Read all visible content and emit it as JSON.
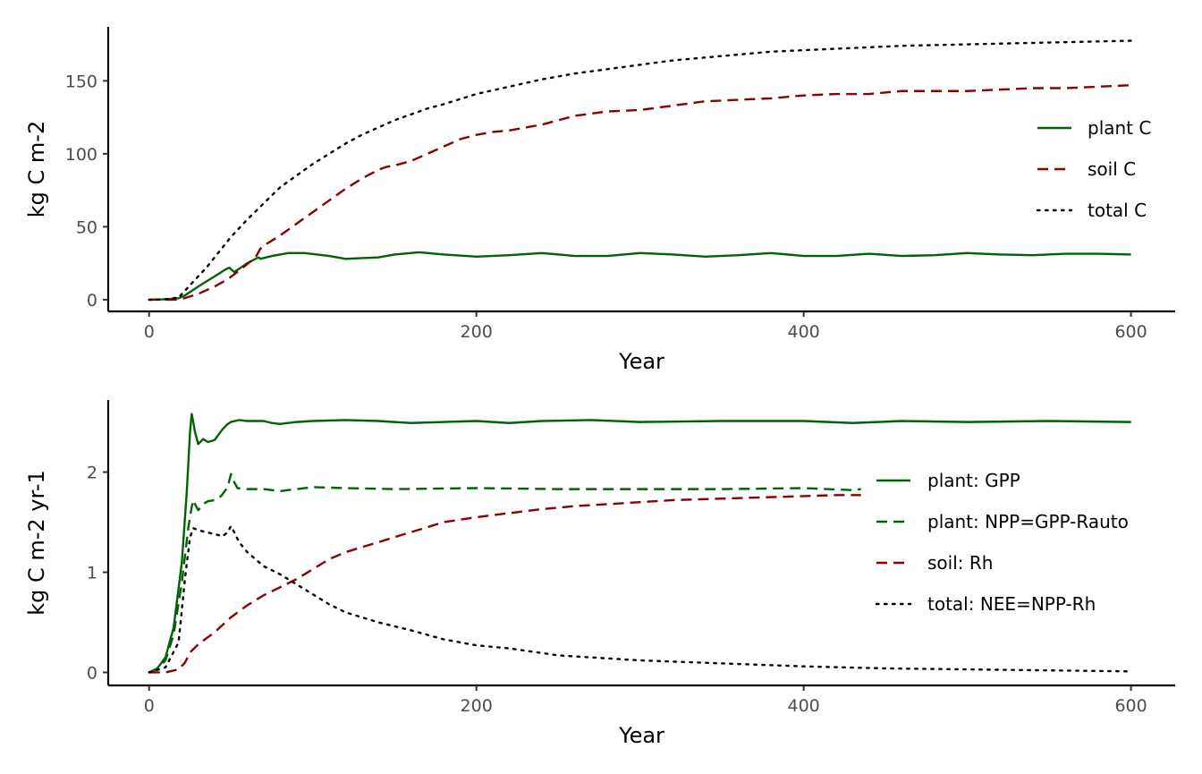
{
  "chart_data": [
    {
      "type": "line",
      "xlabel": "Year",
      "ylabel": "kg C m-2",
      "xlim": [
        -25,
        627
      ],
      "ylim": [
        -8,
        187
      ],
      "xticks": [
        0,
        200,
        400,
        600
      ],
      "xtick_labels": [
        "0",
        "200",
        "400",
        "600"
      ],
      "yticks": [
        0,
        50,
        100,
        150
      ],
      "ytick_labels": [
        "0",
        "50",
        "100",
        "150"
      ],
      "grid": false,
      "legend_position": "right",
      "series": [
        {
          "name": "plant C",
          "color": "#006400",
          "dash": "solid",
          "x": [
            0,
            10,
            18,
            22,
            30,
            40,
            47,
            49,
            52,
            60,
            65,
            67,
            68,
            75,
            85,
            95,
            110,
            120,
            130,
            140,
            150,
            165,
            180,
            200,
            220,
            240,
            260,
            280,
            300,
            320,
            340,
            360,
            380,
            400,
            420,
            440,
            460,
            480,
            500,
            520,
            540,
            560,
            580,
            600
          ],
          "y": [
            0,
            0.3,
            1,
            3,
            9,
            16,
            21,
            22,
            19,
            25,
            28,
            29,
            28,
            30,
            32,
            32,
            30,
            28,
            28.5,
            29,
            31,
            32.5,
            31,
            29.5,
            30.5,
            32,
            30,
            30,
            32,
            31,
            29.5,
            30.5,
            32,
            30,
            30,
            31.5,
            30,
            30.5,
            32,
            31,
            30.5,
            31.5,
            31.5,
            31
          ]
        },
        {
          "name": "soil C",
          "color": "#8b0000",
          "dash": "dashed",
          "x": [
            0,
            15,
            20,
            30,
            40,
            48,
            55,
            65,
            67,
            68,
            70,
            80,
            90,
            100,
            110,
            120,
            130,
            140,
            145,
            150,
            160,
            170,
            180,
            190,
            200,
            210,
            220,
            230,
            240,
            260,
            280,
            300,
            320,
            340,
            360,
            380,
            400,
            420,
            440,
            460,
            480,
            500,
            520,
            540,
            560,
            580,
            600
          ],
          "y": [
            0,
            0,
            0.5,
            4,
            9,
            14,
            20,
            29,
            33,
            35,
            37,
            44,
            52,
            60,
            68,
            76,
            83,
            89,
            91,
            92,
            95,
            100,
            105,
            110,
            113,
            115,
            116,
            118,
            120,
            126,
            129,
            130,
            133,
            136,
            137,
            138,
            140,
            141,
            141,
            143,
            143,
            143,
            144,
            145,
            145,
            146,
            147
          ]
        },
        {
          "name": "total C",
          "color": "#000000",
          "dash": "dotted",
          "x": [
            0,
            10,
            18,
            25,
            35,
            45,
            50,
            60,
            70,
            80,
            90,
            100,
            110,
            120,
            130,
            140,
            150,
            160,
            170,
            180,
            200,
            220,
            240,
            260,
            280,
            300,
            320,
            340,
            360,
            380,
            400,
            420,
            440,
            460,
            480,
            500,
            520,
            540,
            560,
            580,
            600
          ],
          "y": [
            0,
            0.3,
            1.5,
            10,
            22,
            36,
            43,
            55,
            66,
            77,
            85,
            93,
            100,
            107,
            113,
            118,
            123,
            127,
            131,
            134,
            141,
            146,
            151,
            155,
            158,
            161,
            164,
            166,
            168,
            170,
            171,
            172,
            173,
            174,
            174.5,
            175,
            175.5,
            176,
            176.5,
            177,
            177.5
          ]
        }
      ]
    },
    {
      "type": "line",
      "xlabel": "Year",
      "ylabel": "kg C m-2 yr-1",
      "xlim": [
        -25,
        627
      ],
      "ylim": [
        -0.13,
        2.72
      ],
      "xticks": [
        0,
        200,
        400,
        600
      ],
      "xtick_labels": [
        "0",
        "200",
        "400",
        "600"
      ],
      "yticks": [
        0,
        1,
        2
      ],
      "ytick_labels": [
        "0",
        "1",
        "2"
      ],
      "grid": false,
      "legend_position": "right",
      "series": [
        {
          "name": "plant: GPP",
          "color": "#006400",
          "dash": "solid",
          "x": [
            0,
            5,
            10,
            15,
            20,
            23,
            25,
            26,
            27,
            28,
            30,
            33,
            36,
            40,
            45,
            48,
            50,
            55,
            60,
            70,
            75,
            80,
            90,
            100,
            120,
            140,
            160,
            200,
            220,
            240,
            270,
            300,
            350,
            400,
            430,
            460,
            500,
            550,
            600
          ],
          "y": [
            0,
            0.04,
            0.15,
            0.45,
            1.1,
            1.8,
            2.4,
            2.58,
            2.5,
            2.4,
            2.28,
            2.33,
            2.3,
            2.32,
            2.43,
            2.48,
            2.5,
            2.52,
            2.51,
            2.51,
            2.49,
            2.48,
            2.5,
            2.51,
            2.52,
            2.51,
            2.49,
            2.51,
            2.49,
            2.51,
            2.52,
            2.5,
            2.51,
            2.51,
            2.49,
            2.51,
            2.5,
            2.51,
            2.5
          ]
        },
        {
          "name": "plant: NPP=GPP-Rauto",
          "color": "#006400",
          "dash": "dashed",
          "x": [
            0,
            5,
            10,
            15,
            20,
            24,
            26,
            27,
            28,
            30,
            33,
            36,
            40,
            44,
            48,
            50,
            52,
            54,
            60,
            70,
            80,
            90,
            100,
            120,
            150,
            200,
            250,
            300,
            350,
            400,
            430,
            435
          ],
          "y": [
            0,
            0.03,
            0.12,
            0.38,
            0.9,
            1.45,
            1.65,
            1.72,
            1.68,
            1.62,
            1.68,
            1.71,
            1.72,
            1.76,
            1.85,
            1.98,
            1.9,
            1.84,
            1.83,
            1.83,
            1.81,
            1.83,
            1.85,
            1.84,
            1.83,
            1.84,
            1.83,
            1.83,
            1.83,
            1.84,
            1.82,
            1.83
          ]
        },
        {
          "name": "soil: Rh",
          "color": "#8b0000",
          "dash": "dashed",
          "x": [
            0,
            10,
            18,
            22,
            25,
            30,
            40,
            50,
            60,
            70,
            80,
            90,
            100,
            110,
            120,
            130,
            140,
            150,
            160,
            170,
            180,
            200,
            220,
            240,
            260,
            280,
            300,
            320,
            340,
            360,
            380,
            400,
            420,
            435
          ],
          "y": [
            0,
            0,
            0.03,
            0.1,
            0.2,
            0.28,
            0.4,
            0.55,
            0.67,
            0.77,
            0.85,
            0.93,
            1.03,
            1.13,
            1.2,
            1.25,
            1.3,
            1.35,
            1.4,
            1.45,
            1.5,
            1.55,
            1.59,
            1.63,
            1.66,
            1.68,
            1.7,
            1.72,
            1.73,
            1.74,
            1.75,
            1.76,
            1.77,
            1.77
          ]
        },
        {
          "name": "total: NEE=NPP-Rh",
          "color": "#000000",
          "dash": "dotted",
          "x": [
            0,
            10,
            18,
            22,
            25,
            27,
            30,
            35,
            40,
            45,
            48,
            50,
            52,
            55,
            60,
            70,
            80,
            90,
            100,
            110,
            120,
            140,
            160,
            180,
            200,
            220,
            250,
            280,
            300,
            350,
            400,
            450,
            500,
            550,
            600
          ],
          "y": [
            0,
            0.05,
            0.3,
            0.95,
            1.35,
            1.44,
            1.42,
            1.4,
            1.38,
            1.36,
            1.4,
            1.46,
            1.4,
            1.3,
            1.2,
            1.06,
            0.98,
            0.88,
            0.78,
            0.68,
            0.6,
            0.5,
            0.42,
            0.33,
            0.27,
            0.24,
            0.17,
            0.14,
            0.12,
            0.09,
            0.06,
            0.04,
            0.03,
            0.02,
            0.01
          ]
        }
      ]
    }
  ]
}
